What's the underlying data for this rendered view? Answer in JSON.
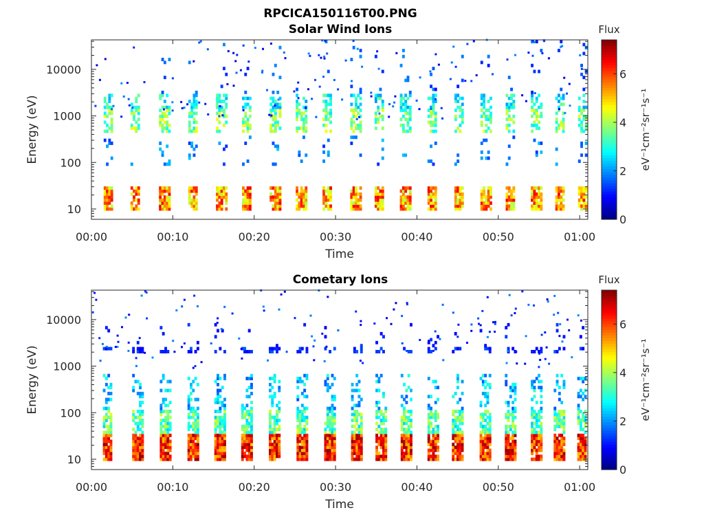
{
  "figure": {
    "filename": "RPCICA150116T00.PNG"
  },
  "chart_data": [
    {
      "type": "heatmap",
      "title": "Solar Wind Ions",
      "xlabel": "Time",
      "ylabel": "Energy (eV)",
      "yscale": "log",
      "xlim": [
        "00:00",
        "01:01"
      ],
      "ylim": [
        6,
        43000
      ],
      "xticks": [
        "00:00",
        "00:10",
        "00:20",
        "00:30",
        "00:40",
        "00:50",
        "01:00"
      ],
      "yticks": [
        "10",
        "100",
        "1000",
        "10000"
      ],
      "colorbar": {
        "label": "Flux",
        "units": "eV⁻¹cm⁻²sr⁻¹s⁻¹",
        "range": [
          0,
          7.4
        ],
        "ticks": [
          "0",
          "2",
          "4",
          "6"
        ],
        "colormap": "jet"
      },
      "seed": 17,
      "bursts": [
        {
          "t": 1.5,
          "dur": 1.1
        },
        {
          "t": 4.8,
          "dur": 1.1
        },
        {
          "t": 8.3,
          "dur": 1.2
        },
        {
          "t": 11.9,
          "dur": 1.1
        },
        {
          "t": 15.3,
          "dur": 1.2
        },
        {
          "t": 18.5,
          "dur": 1.1
        },
        {
          "t": 21.9,
          "dur": 1.2
        },
        {
          "t": 25.1,
          "dur": 1.3
        },
        {
          "t": 28.4,
          "dur": 1.1
        },
        {
          "t": 31.8,
          "dur": 1.2
        },
        {
          "t": 34.8,
          "dur": 1.1
        },
        {
          "t": 37.9,
          "dur": 1.3
        },
        {
          "t": 41.3,
          "dur": 1.1
        },
        {
          "t": 44.6,
          "dur": 1.1
        },
        {
          "t": 47.8,
          "dur": 1.2
        },
        {
          "t": 50.9,
          "dur": 1.1
        },
        {
          "t": 54.0,
          "dur": 1.2
        },
        {
          "t": 57.0,
          "dur": 1.1
        },
        {
          "t": 59.8,
          "dur": 1.0
        }
      ],
      "bands": [
        {
          "e_lo": 9,
          "e_hi": 30,
          "min": 4,
          "max": 6.6,
          "fill": 0.85
        },
        {
          "e_lo": 470,
          "e_hi": 1400,
          "min": 2.6,
          "max": 4.6,
          "fill": 0.55
        },
        {
          "e_lo": 1400,
          "e_hi": 2800,
          "min": 2.0,
          "max": 3.6,
          "fill": 0.5
        },
        {
          "e_lo": 80,
          "e_hi": 400,
          "min": 1.2,
          "max": 2.4,
          "fill": 0.12
        },
        {
          "e_lo": 2800,
          "e_hi": 40000,
          "min": 1.0,
          "max": 2.0,
          "fill": 0.05
        }
      ]
    },
    {
      "type": "heatmap",
      "title": "Cometary Ions",
      "xlabel": "Time",
      "ylabel": "Energy (eV)",
      "yscale": "log",
      "xlim": [
        "00:00",
        "01:01"
      ],
      "ylim": [
        6,
        43000
      ],
      "xticks": [
        "00:00",
        "00:10",
        "00:20",
        "00:30",
        "00:40",
        "00:50",
        "01:00"
      ],
      "yticks": [
        "10",
        "100",
        "1000",
        "10000"
      ],
      "colorbar": {
        "label": "Flux",
        "units": "eV⁻¹cm⁻²sr⁻¹s⁻¹",
        "range": [
          0,
          7.4
        ],
        "ticks": [
          "0",
          "2",
          "4",
          "6"
        ],
        "colormap": "jet"
      },
      "seed": 91,
      "bursts": [
        {
          "t": 1.4,
          "dur": 1.1
        },
        {
          "t": 5.0,
          "dur": 1.2
        },
        {
          "t": 8.4,
          "dur": 1.2
        },
        {
          "t": 11.8,
          "dur": 1.2
        },
        {
          "t": 15.1,
          "dur": 1.2
        },
        {
          "t": 18.4,
          "dur": 1.2
        },
        {
          "t": 21.8,
          "dur": 1.2
        },
        {
          "t": 25.2,
          "dur": 1.3
        },
        {
          "t": 28.6,
          "dur": 1.2
        },
        {
          "t": 31.9,
          "dur": 1.2
        },
        {
          "t": 34.9,
          "dur": 1.2
        },
        {
          "t": 38.0,
          "dur": 1.3
        },
        {
          "t": 41.3,
          "dur": 1.2
        },
        {
          "t": 44.3,
          "dur": 1.3
        },
        {
          "t": 47.7,
          "dur": 1.2
        },
        {
          "t": 50.8,
          "dur": 1.2
        },
        {
          "t": 54.0,
          "dur": 1.2
        },
        {
          "t": 56.8,
          "dur": 1.2
        },
        {
          "t": 59.7,
          "dur": 1.1
        }
      ],
      "bands": [
        {
          "e_lo": 9,
          "e_hi": 35,
          "min": 5.0,
          "max": 7.3,
          "fill": 0.95
        },
        {
          "e_lo": 35,
          "e_hi": 110,
          "min": 2.4,
          "max": 4.4,
          "fill": 0.7
        },
        {
          "e_lo": 110,
          "e_hi": 700,
          "min": 1.5,
          "max": 3.2,
          "fill": 0.28
        },
        {
          "e_lo": 1800,
          "e_hi": 2600,
          "min": 0.8,
          "max": 1.6,
          "fill": 0.45
        },
        {
          "e_lo": 2600,
          "e_hi": 10000,
          "min": 0.8,
          "max": 1.4,
          "fill": 0.05
        }
      ]
    }
  ]
}
